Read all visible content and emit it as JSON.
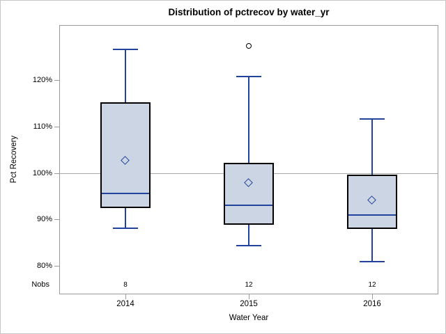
{
  "colors": {
    "box_fill": "#ccd5e3",
    "box_outline": "#000000",
    "line_blue": "#22439b",
    "axis_gray": "#9b9b9b",
    "reference_line_gray": "#a6a6a6",
    "text": "#000000",
    "figure_border": "#c6c6c6"
  },
  "chart_data": {
    "type": "box",
    "title": "Distribution of pctrecov by water_yr",
    "xlabel": "Water Year",
    "ylabel": "Pct Recovery",
    "ylim": [
      74,
      132
    ],
    "grid": false,
    "legend_position": "none",
    "reference_line_y": 100,
    "y_ticks": [
      {
        "value": 80,
        "label": "80%"
      },
      {
        "value": 90,
        "label": "90%"
      },
      {
        "value": 100,
        "label": "100%"
      },
      {
        "value": 110,
        "label": "110%"
      },
      {
        "value": 120,
        "label": "120%"
      }
    ],
    "nobs_label": "Nobs",
    "categories": [
      "2014",
      "2015",
      "2016"
    ],
    "series": [
      {
        "category": "2014",
        "nobs": 8,
        "whisker_low": 88.1,
        "q1": 92.5,
        "median": 95.7,
        "q3": 115.3,
        "whisker_high": 126.7,
        "mean": 102.7,
        "outliers": []
      },
      {
        "category": "2015",
        "nobs": 12,
        "whisker_low": 84.4,
        "q1": 88.9,
        "median": 93.1,
        "q3": 102.3,
        "whisker_high": 120.9,
        "mean": 97.9,
        "outliers": [
          127.5
        ]
      },
      {
        "category": "2016",
        "nobs": 12,
        "whisker_low": 80.9,
        "q1": 88.0,
        "median": 91.0,
        "q3": 99.7,
        "whisker_high": 111.7,
        "mean": 94.1,
        "outliers": []
      }
    ]
  }
}
